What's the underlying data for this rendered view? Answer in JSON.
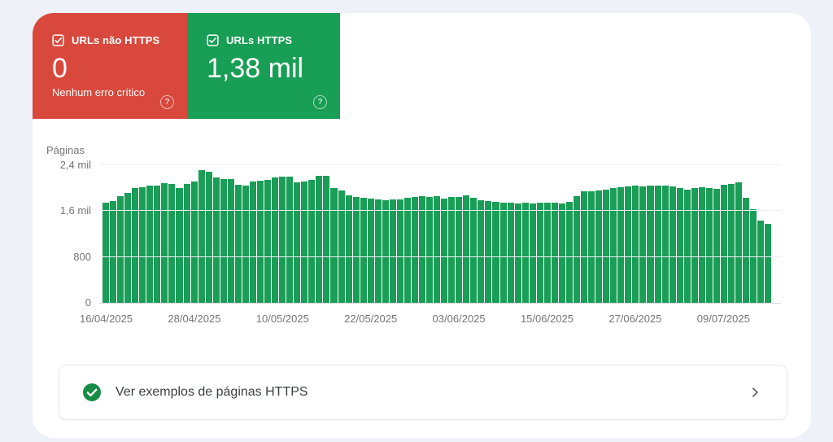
{
  "page": {
    "background": "#eef1f7",
    "panel_background": "#ffffff"
  },
  "cards": {
    "non_https": {
      "label": "URLs não HTTPS",
      "value": "0",
      "subtitle": "Nenhum erro crítico",
      "color": "#d9483c",
      "help_icon": "?"
    },
    "https": {
      "label": "URLs HTTPS",
      "value": "1,38 mil",
      "color": "#189e55",
      "help_icon": "?"
    }
  },
  "chart_data": {
    "type": "bar",
    "title": "",
    "ylabel": "Páginas",
    "bar_color": "#1a9d56",
    "grid": true,
    "ylim": [
      0,
      2400
    ],
    "y_ticks": [
      {
        "value": 0,
        "label": "0"
      },
      {
        "value": 800,
        "label": "800"
      },
      {
        "value": 1600,
        "label": "1,6 mil"
      },
      {
        "value": 2400,
        "label": "2,4 mil"
      }
    ],
    "x_ticks": [
      {
        "label": "16/04/2025",
        "day_index": 0
      },
      {
        "label": "28/04/2025",
        "day_index": 12
      },
      {
        "label": "10/05/2025",
        "day_index": 24
      },
      {
        "label": "22/05/2025",
        "day_index": 36
      },
      {
        "label": "03/06/2025",
        "day_index": 48
      },
      {
        "label": "15/06/2025",
        "day_index": 60
      },
      {
        "label": "27/06/2025",
        "day_index": 72
      },
      {
        "label": "09/07/2025",
        "day_index": 84
      }
    ],
    "categories": [
      "16/04/2025",
      "17/04/2025",
      "18/04/2025",
      "19/04/2025",
      "20/04/2025",
      "21/04/2025",
      "22/04/2025",
      "23/04/2025",
      "24/04/2025",
      "25/04/2025",
      "26/04/2025",
      "27/04/2025",
      "28/04/2025",
      "29/04/2025",
      "30/04/2025",
      "01/05/2025",
      "02/05/2025",
      "03/05/2025",
      "04/05/2025",
      "05/05/2025",
      "06/05/2025",
      "07/05/2025",
      "08/05/2025",
      "09/05/2025",
      "10/05/2025",
      "11/05/2025",
      "12/05/2025",
      "13/05/2025",
      "14/05/2025",
      "15/05/2025",
      "16/05/2025",
      "17/05/2025",
      "18/05/2025",
      "19/05/2025",
      "20/05/2025",
      "21/05/2025",
      "22/05/2025",
      "23/05/2025",
      "24/05/2025",
      "25/05/2025",
      "26/05/2025",
      "27/05/2025",
      "28/05/2025",
      "29/05/2025",
      "30/05/2025",
      "31/05/2025",
      "01/06/2025",
      "02/06/2025",
      "03/06/2025",
      "04/06/2025",
      "05/06/2025",
      "06/06/2025",
      "07/06/2025",
      "08/06/2025",
      "09/06/2025",
      "10/06/2025",
      "11/06/2025",
      "12/06/2025",
      "13/06/2025",
      "14/06/2025",
      "15/06/2025",
      "16/06/2025",
      "17/06/2025",
      "18/06/2025",
      "19/06/2025",
      "20/06/2025",
      "21/06/2025",
      "22/06/2025",
      "23/06/2025",
      "24/06/2025",
      "25/06/2025",
      "26/06/2025",
      "27/06/2025",
      "28/06/2025",
      "29/06/2025",
      "30/06/2025",
      "01/07/2025",
      "02/07/2025",
      "03/07/2025",
      "04/07/2025",
      "05/07/2025",
      "06/07/2025",
      "07/07/2025",
      "08/07/2025",
      "09/07/2025",
      "10/07/2025",
      "11/07/2025",
      "12/07/2025",
      "13/07/2025",
      "14/07/2025",
      "15/07/2025"
    ],
    "values": [
      1750,
      1780,
      1860,
      1920,
      2000,
      2010,
      2040,
      2050,
      2090,
      2080,
      2000,
      2080,
      2110,
      2310,
      2280,
      2190,
      2160,
      2160,
      2060,
      2040,
      2110,
      2130,
      2140,
      2190,
      2200,
      2200,
      2100,
      2120,
      2140,
      2210,
      2220,
      2000,
      1960,
      1870,
      1840,
      1830,
      1820,
      1800,
      1790,
      1800,
      1810,
      1830,
      1850,
      1860,
      1850,
      1860,
      1820,
      1840,
      1850,
      1880,
      1830,
      1790,
      1770,
      1760,
      1750,
      1740,
      1730,
      1740,
      1730,
      1750,
      1740,
      1750,
      1730,
      1760,
      1860,
      1940,
      1950,
      1960,
      1980,
      2000,
      2010,
      2030,
      2040,
      2030,
      2040,
      2050,
      2040,
      2030,
      2000,
      1980,
      2000,
      2010,
      2000,
      1990,
      2060,
      2080,
      2100,
      1830,
      1630,
      1440,
      1380
    ]
  },
  "footer_card": {
    "label": "Ver exemplos de páginas HTTPS",
    "icon_color": "#188c44"
  }
}
